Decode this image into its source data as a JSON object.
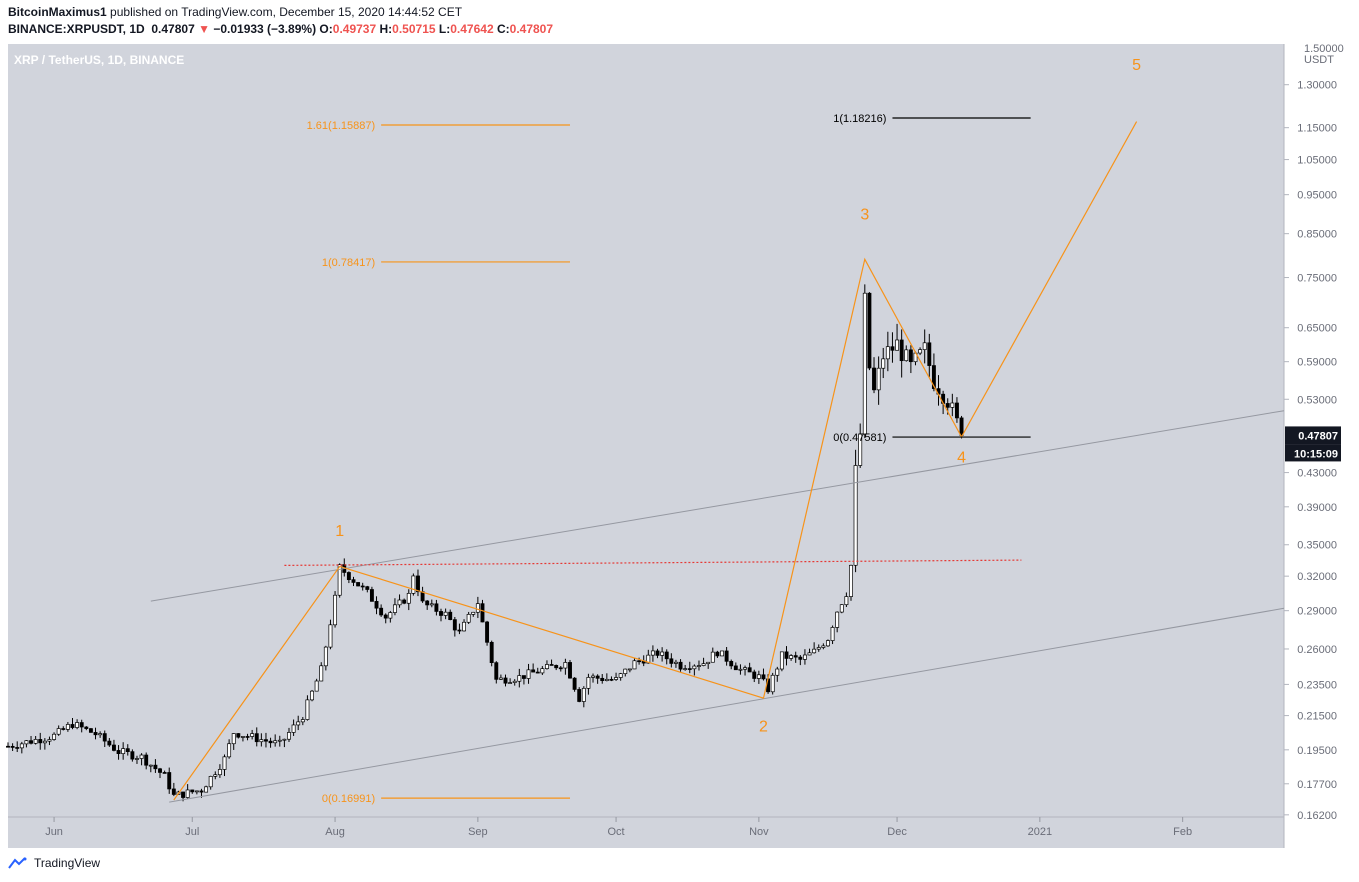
{
  "header": {
    "author": "BitcoinMaximus1",
    "published_text": "published on TradingView.com, December 15, 2020 14:44:52 CET",
    "symbol_line": "BINANCE:XRPUSDT, 1D",
    "last": "0.47807",
    "arrow": "▼",
    "change": "−0.01933 (−3.89%)",
    "o_label": "O:",
    "o": "0.49737",
    "h_label": "H:",
    "h": "0.50715",
    "l_label": "L:",
    "l": "0.47642",
    "c_label": "C:",
    "c": "0.47807"
  },
  "footer": {
    "brand": "TradingView"
  },
  "colors": {
    "background": "#d1d4dc",
    "orange": "#f7931a",
    "black": "#000000",
    "grey_line": "#9598a1",
    "red_dotted": "#e53935",
    "candle_up": "#ffffff",
    "candle_down": "#000000",
    "price_tag_bg": "#131722"
  },
  "chart_data": {
    "type": "candlestick",
    "title": "XRP / TetherUS, 1D, BINANCE",
    "yaxis_unit": "USDT",
    "yaxis_scale": "log",
    "ylim": [
      0.161,
      1.46
    ],
    "ytick_top_partial": "1.50000",
    "yticks": [
      "1.30000",
      "1.15000",
      "1.05000",
      "0.95000",
      "0.85000",
      "0.75000",
      "0.65000",
      "0.59000",
      "0.53000",
      "0.43000",
      "0.39000",
      "0.35000",
      "0.32000",
      "0.29000",
      "0.26000",
      "0.23500",
      "0.21500",
      "0.19500",
      "0.17700",
      "0.16200"
    ],
    "x_start": "2020-05-22",
    "x_end": "2021-02-23",
    "xticks": [
      {
        "label": "Jun",
        "date": "2020-06-01"
      },
      {
        "label": "Jul",
        "date": "2020-07-01"
      },
      {
        "label": "Aug",
        "date": "2020-08-01"
      },
      {
        "label": "Sep",
        "date": "2020-09-01"
      },
      {
        "label": "Oct",
        "date": "2020-10-01"
      },
      {
        "label": "Nov",
        "date": "2020-11-01"
      },
      {
        "label": "Dec",
        "date": "2020-12-01"
      },
      {
        "label": "2021",
        "date": "2021-01-01"
      },
      {
        "label": "Feb",
        "date": "2021-02-01"
      }
    ],
    "current_price": {
      "value": 0.47807,
      "label": "0.47807",
      "countdown": "10:15:09"
    },
    "price_path": [
      [
        "2020-05-22",
        0.197
      ],
      [
        "2020-06-01",
        0.203
      ],
      [
        "2020-06-05",
        0.21
      ],
      [
        "2020-06-10",
        0.204
      ],
      [
        "2020-06-15",
        0.194
      ],
      [
        "2020-06-20",
        0.191
      ],
      [
        "2020-06-25",
        0.181
      ],
      [
        "2020-06-27",
        0.171
      ],
      [
        "2020-07-03",
        0.174
      ],
      [
        "2020-07-08",
        0.19
      ],
      [
        "2020-07-10",
        0.205
      ],
      [
        "2020-07-20",
        0.198
      ],
      [
        "2020-07-25",
        0.215
      ],
      [
        "2020-07-29",
        0.245
      ],
      [
        "2020-08-01",
        0.3
      ],
      [
        "2020-08-02",
        0.328
      ],
      [
        "2020-08-08",
        0.305
      ],
      [
        "2020-08-12",
        0.285
      ],
      [
        "2020-08-17",
        0.303
      ],
      [
        "2020-08-18",
        0.322
      ],
      [
        "2020-08-20",
        0.296
      ],
      [
        "2020-08-25",
        0.287
      ],
      [
        "2020-08-28",
        0.272
      ],
      [
        "2020-09-01",
        0.297
      ],
      [
        "2020-09-02",
        0.28
      ],
      [
        "2020-09-05",
        0.238
      ],
      [
        "2020-09-10",
        0.24
      ],
      [
        "2020-09-15",
        0.245
      ],
      [
        "2020-09-20",
        0.25
      ],
      [
        "2020-09-23",
        0.226
      ],
      [
        "2020-09-25",
        0.24
      ],
      [
        "2020-10-01",
        0.238
      ],
      [
        "2020-10-05",
        0.25
      ],
      [
        "2020-10-10",
        0.257
      ],
      [
        "2020-10-15",
        0.248
      ],
      [
        "2020-10-20",
        0.25
      ],
      [
        "2020-10-23",
        0.258
      ],
      [
        "2020-10-28",
        0.245
      ],
      [
        "2020-11-01",
        0.24
      ],
      [
        "2020-11-03",
        0.232
      ],
      [
        "2020-11-06",
        0.255
      ],
      [
        "2020-11-10",
        0.252
      ],
      [
        "2020-11-13",
        0.258
      ],
      [
        "2020-11-16",
        0.268
      ],
      [
        "2020-11-18",
        0.29
      ],
      [
        "2020-11-20",
        0.305
      ],
      [
        "2020-11-21",
        0.33
      ],
      [
        "2020-11-22",
        0.43
      ],
      [
        "2020-11-23",
        0.48
      ],
      [
        "2020-11-24",
        0.7
      ],
      [
        "2020-11-25",
        0.58
      ],
      [
        "2020-11-26",
        0.54
      ],
      [
        "2020-11-28",
        0.6
      ],
      [
        "2020-12-01",
        0.62
      ],
      [
        "2020-12-04",
        0.58
      ],
      [
        "2020-12-07",
        0.61
      ],
      [
        "2020-12-09",
        0.56
      ],
      [
        "2020-12-12",
        0.53
      ],
      [
        "2020-12-15",
        0.478
      ]
    ],
    "trendlines": [
      {
        "name": "channel-upper",
        "color": "grey",
        "points": [
          [
            "2020-06-22",
            0.298
          ],
          [
            "2021-02-23",
            0.513
          ]
        ]
      },
      {
        "name": "channel-lower",
        "color": "grey",
        "points": [
          [
            "2020-06-26",
            0.168
          ],
          [
            "2021-02-23",
            0.292
          ]
        ]
      },
      {
        "name": "resistance-dotted",
        "color": "red",
        "dotted": true,
        "points": [
          [
            "2020-07-21",
            0.33
          ],
          [
            "2020-12-28",
            0.335
          ]
        ]
      },
      {
        "name": "wave-path",
        "color": "orange",
        "points": [
          [
            "2020-06-27",
            0.169
          ],
          [
            "2020-08-02",
            0.329
          ],
          [
            "2020-11-02",
            0.226
          ],
          [
            "2020-11-24",
            0.79
          ],
          [
            "2020-12-15",
            0.476
          ],
          [
            "2021-01-22",
            1.17
          ]
        ]
      }
    ],
    "wave_labels": [
      {
        "text": "1",
        "date": "2020-08-02",
        "price": 0.365
      },
      {
        "text": "2",
        "date": "2020-11-02",
        "price": 0.209
      },
      {
        "text": "3",
        "date": "2020-11-24",
        "price": 0.9
      },
      {
        "text": "4",
        "date": "2020-12-15",
        "price": 0.45
      },
      {
        "text": "5",
        "date": "2021-01-22",
        "price": 1.38
      }
    ],
    "fib_levels": [
      {
        "label": "1.61(1.15887)",
        "value": 1.15887,
        "color": "orange",
        "from": "2020-08-11",
        "to": "2020-09-21",
        "label_side": "left"
      },
      {
        "label": "1(0.78417)",
        "value": 0.78417,
        "color": "orange",
        "from": "2020-08-11",
        "to": "2020-09-21",
        "label_side": "left"
      },
      {
        "label": "0(0.16991)",
        "value": 0.16991,
        "color": "orange",
        "from": "2020-08-11",
        "to": "2020-09-21",
        "label_side": "left"
      },
      {
        "label": "1(1.18216)",
        "value": 1.18216,
        "color": "black",
        "from": "2020-11-30",
        "to": "2020-12-30",
        "label_side": "left"
      },
      {
        "label": "0(0.47581)",
        "value": 0.47581,
        "color": "black",
        "from": "2020-11-30",
        "to": "2020-12-30",
        "label_side": "left"
      }
    ]
  }
}
